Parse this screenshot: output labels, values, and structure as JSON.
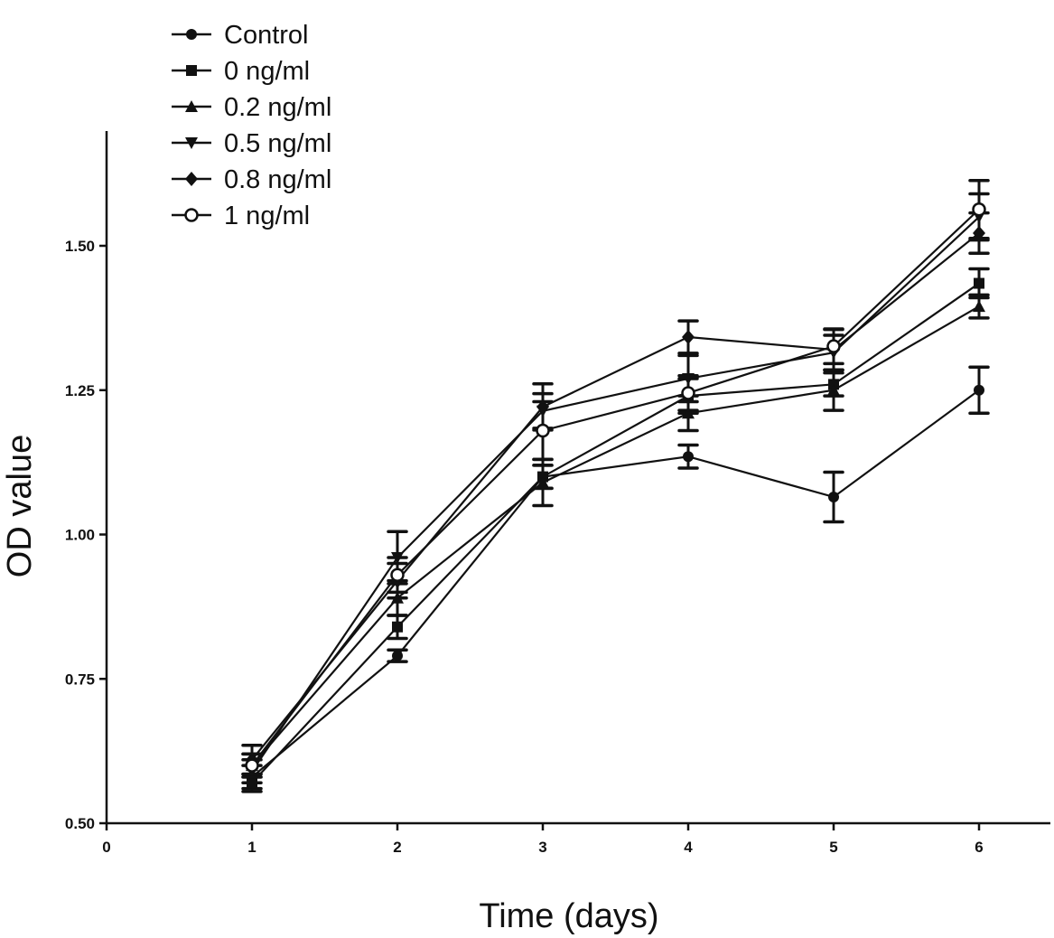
{
  "chart_data": {
    "type": "line",
    "title": "",
    "xlabel": "Time (days)",
    "ylabel": "OD value",
    "xlim": [
      0,
      6.5
    ],
    "ylim": [
      0.5,
      1.7
    ],
    "xticks": [
      "0",
      "1",
      "2",
      "3",
      "4",
      "5",
      "6"
    ],
    "yticks": [
      "0.50",
      "0.75",
      "1.00",
      "1.25",
      "1.50"
    ],
    "grid": false,
    "legend_position": "top-left",
    "x": [
      1,
      2,
      3,
      4,
      5,
      6
    ],
    "series": [
      {
        "name": "Control",
        "marker": "filled-circle",
        "values": [
          0.58,
          0.79,
          1.1,
          1.135,
          1.065,
          1.25
        ],
        "errors": [
          0.02,
          0.01,
          0.02,
          0.02,
          0.043,
          0.04
        ]
      },
      {
        "name": "0 ng/ml",
        "marker": "filled-square",
        "values": [
          0.57,
          0.84,
          1.1,
          1.24,
          1.26,
          1.435
        ],
        "errors": [
          0.015,
          0.02,
          0.02,
          0.03,
          0.02,
          0.025
        ]
      },
      {
        "name": "0.2 ng/ml",
        "marker": "filled-triangle-up",
        "values": [
          0.6,
          0.89,
          1.09,
          1.21,
          1.25,
          1.395
        ],
        "errors": [
          0.02,
          0.03,
          0.04,
          0.03,
          0.035,
          0.02
        ]
      },
      {
        "name": "0.5 ng/ml",
        "marker": "filled-triangle-down",
        "values": [
          0.59,
          0.96,
          1.214,
          1.27,
          1.315,
          1.55
        ],
        "errors": [
          0.02,
          0.045,
          0.03,
          0.04,
          0.03,
          0.04
        ]
      },
      {
        "name": "0.8 ng/ml",
        "marker": "filled-diamond",
        "values": [
          0.61,
          0.92,
          1.221,
          1.342,
          1.32,
          1.522
        ],
        "errors": [
          0.025,
          0.03,
          0.04,
          0.028,
          0.035,
          0.035
        ]
      },
      {
        "name": "1 ng/ml",
        "marker": "open-circle",
        "values": [
          0.6,
          0.93,
          1.18,
          1.245,
          1.326,
          1.563
        ],
        "errors": [
          0.02,
          0.03,
          0.05,
          0.03,
          0.03,
          0.05
        ]
      }
    ]
  }
}
